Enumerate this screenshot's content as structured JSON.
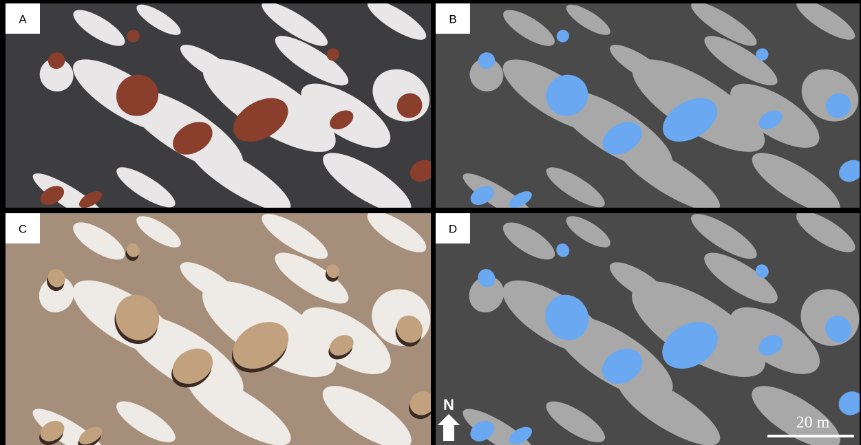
{
  "panels": [
    {
      "label": "A"
    },
    {
      "label": "B"
    },
    {
      "label": "C"
    },
    {
      "label": "D"
    }
  ],
  "north_arrow": {
    "label": "N"
  },
  "scale_bar": {
    "label": "20 m"
  }
}
